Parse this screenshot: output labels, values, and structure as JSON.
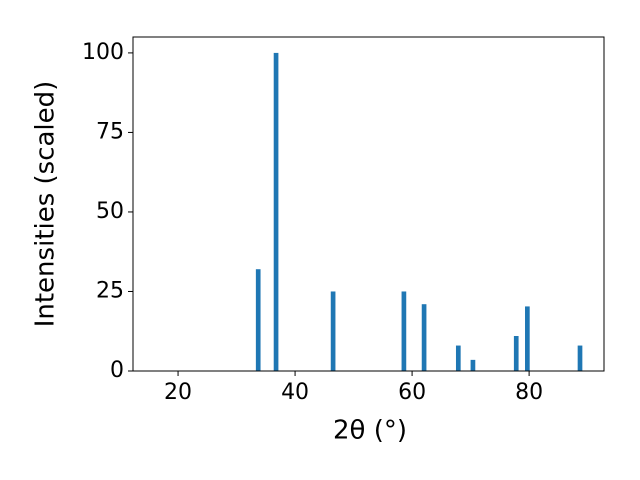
{
  "chart_data": {
    "type": "bar",
    "xlabel": "2θ (°)",
    "ylabel": "Intensities (scaled)",
    "x": [
      33.7,
      36.75,
      46.5,
      58.6,
      62.05,
      67.9,
      70.4,
      77.8,
      79.7,
      88.7
    ],
    "values": [
      32,
      100,
      25,
      25,
      21,
      8,
      3.5,
      11,
      20.3,
      8
    ],
    "color": "#1f77b4",
    "xlim": [
      12.3,
      92.8
    ],
    "xticks": [
      20,
      40,
      60,
      80
    ],
    "ylim": [
      0,
      105
    ],
    "yticks": [
      0,
      25,
      50,
      75,
      100
    ]
  }
}
